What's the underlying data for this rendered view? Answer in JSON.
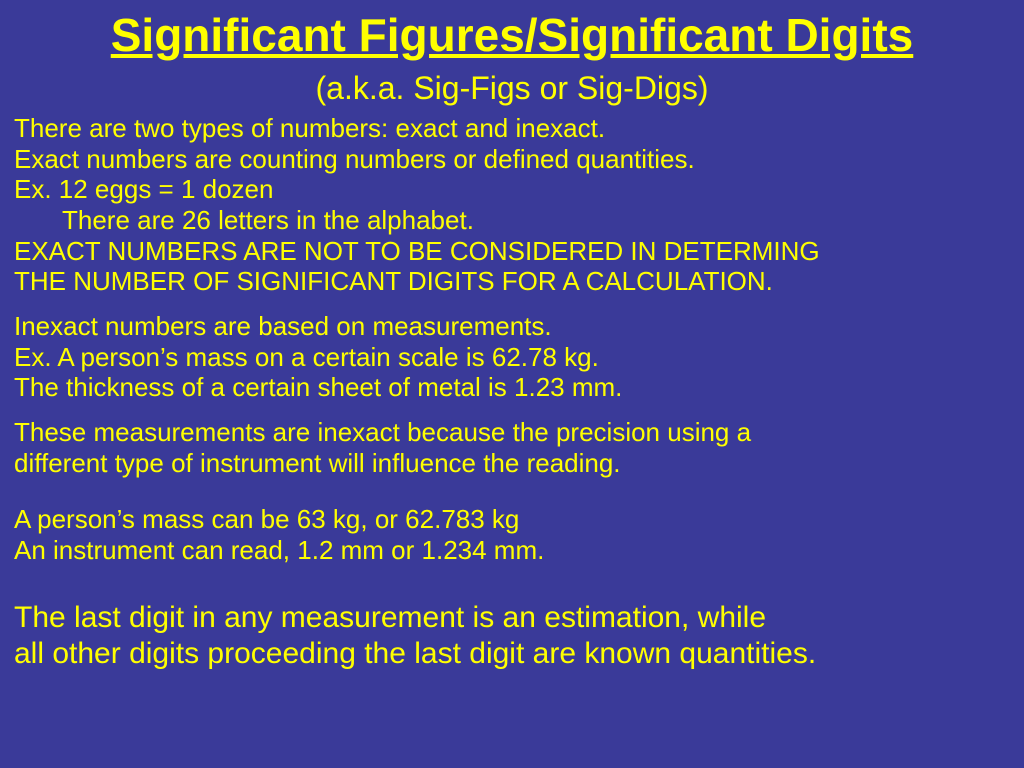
{
  "colors": {
    "background": "#3a3a99",
    "text": "#ffff00"
  },
  "typography": {
    "title_fontsize": 46,
    "title_weight": "bold",
    "title_underline": true,
    "subtitle_fontsize": 32,
    "body_fontsize": 26,
    "final_fontsize": 30,
    "font_family": "Arial"
  },
  "title": "Significant Figures/Significant Digits",
  "subtitle": "(a.k.a. Sig-Figs or Sig-Digs)",
  "p1": {
    "l1": "There are two types of numbers:  exact and inexact.",
    "l2": "Exact numbers are counting numbers or defined quantities.",
    "l3": "Ex.  12 eggs = 1 dozen",
    "l4": "There are 26 letters in the alphabet.",
    "l5": "EXACT NUMBERS ARE NOT TO BE CONSIDERED IN DETERMING",
    "l6": "THE NUMBER OF SIGNIFICANT DIGITS FOR A CALCULATION."
  },
  "p2": {
    "l1": "Inexact numbers are based on measurements.",
    "l2": "Ex.  A person’s mass on a certain scale is 62.78 kg.",
    "l3": "The thickness of a certain sheet of metal is 1.23 mm."
  },
  "p3": {
    "l1": "These measurements are inexact because the precision using a",
    "l2": "different type of instrument will influence the reading."
  },
  "p4": {
    "l1": "A person’s mass can be 63 kg, or 62.783 kg",
    "l2": "An instrument can read, 1.2 mm or 1.234 mm."
  },
  "p5": {
    "l1": "The last digit in any measurement is an estimation, while",
    "l2": "all other digits proceeding the last digit are known quantities."
  }
}
